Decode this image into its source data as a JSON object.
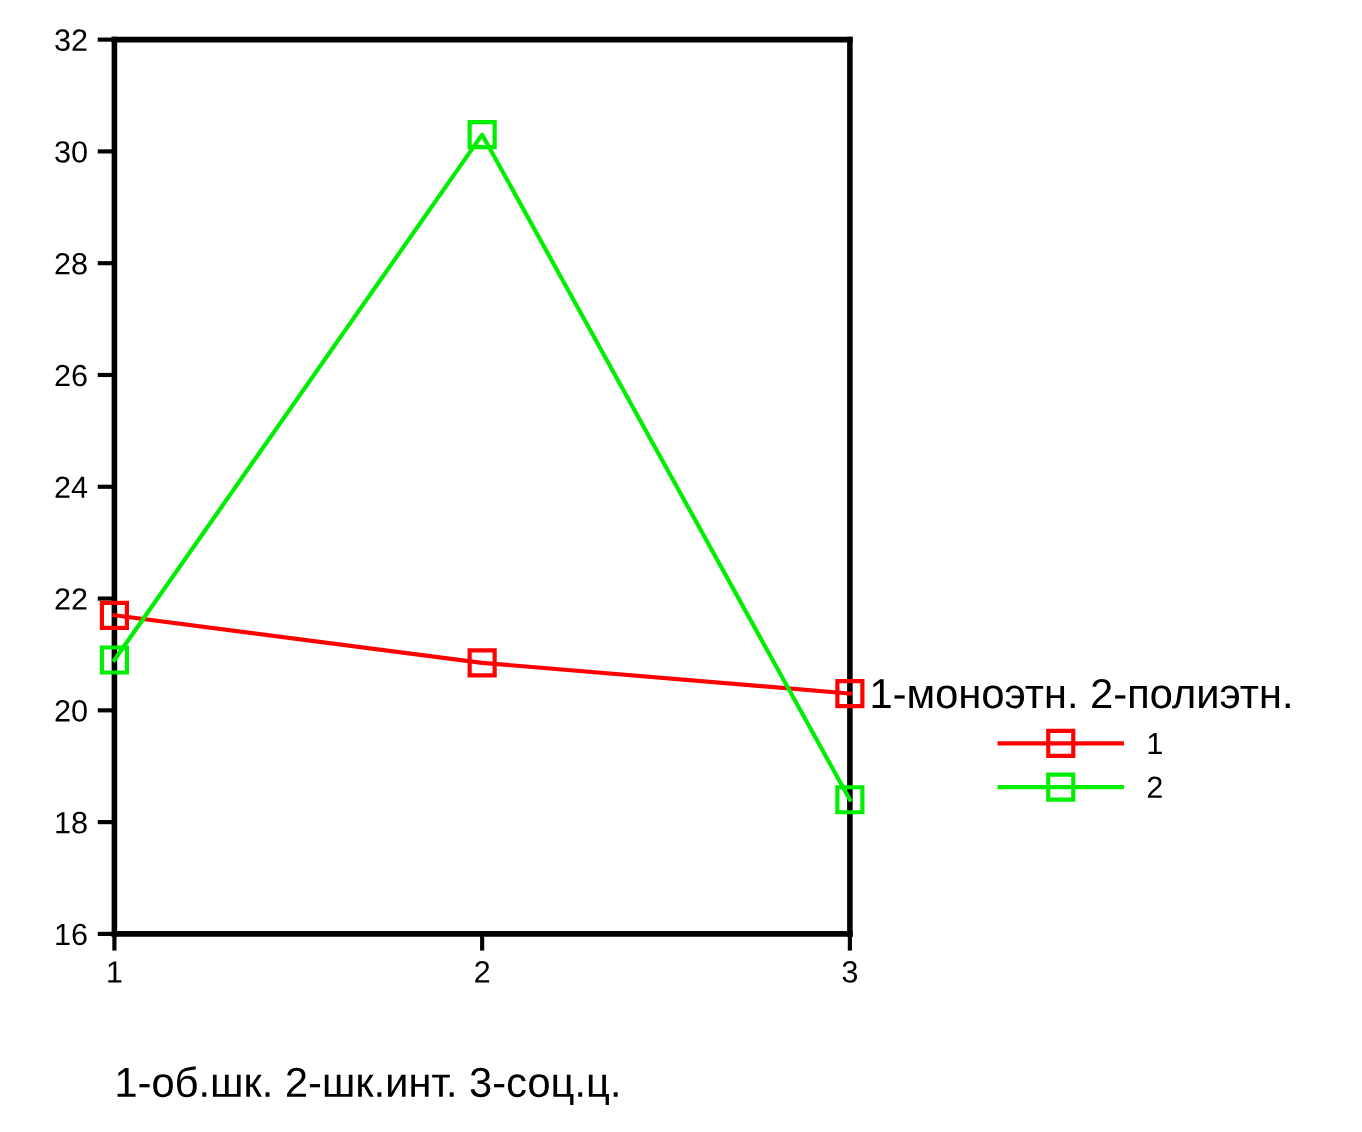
{
  "chart_data": {
    "type": "line",
    "xlabel": "1-об.шк. 2-шк.инт. 3-соц.ц.",
    "legend_title": "1-моноэтн. 2-полиэтн.",
    "x": [
      1,
      2,
      3
    ],
    "xlim": [
      1,
      3
    ],
    "xticks": [
      1,
      2,
      3
    ],
    "ylim": [
      16,
      32
    ],
    "yticks": [
      16,
      18,
      20,
      22,
      24,
      26,
      28,
      30,
      32
    ],
    "series": [
      {
        "name": "1",
        "color": "#ff0000",
        "values": [
          21.7,
          20.85,
          20.3
        ]
      },
      {
        "name": "2",
        "color": "#00ee00",
        "values": [
          20.9,
          30.3,
          18.4
        ]
      }
    ],
    "marker": "square",
    "line_style": "solid",
    "grid": false,
    "legend": "right"
  }
}
